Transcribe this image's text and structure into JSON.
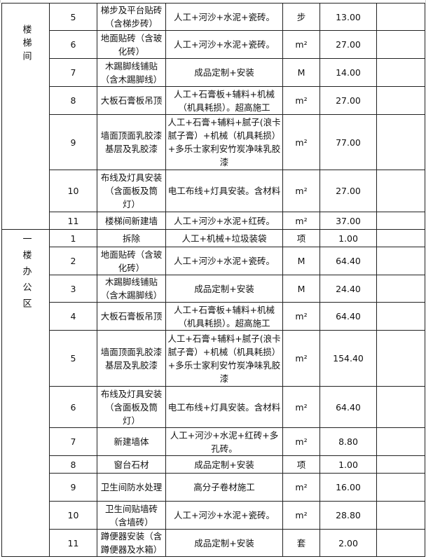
{
  "sections": [
    {
      "name": "楼梯间",
      "rows": [
        {
          "no": "5",
          "item": "梯步及平台贴砖（含梯步砖）",
          "desc": "人工+河沙+水泥+瓷砖。",
          "unit": "步",
          "qty": "13.00",
          "note": ""
        },
        {
          "no": "6",
          "item": "地面贴砖（含玻化砖）",
          "desc": "人工+河沙+水泥+瓷砖。",
          "unit": "m²",
          "qty": "27.00",
          "note": ""
        },
        {
          "no": "7",
          "item": "木踢脚线铺贴（含木踢脚线）",
          "desc": "成品定制+安装",
          "unit": "M",
          "qty": "14.00",
          "note": ""
        },
        {
          "no": "8",
          "item": "大板石膏板吊顶",
          "desc": "人工+石膏板+辅料+机械（机具耗损）。超高施工",
          "unit": "m²",
          "qty": "27.00",
          "note": ""
        },
        {
          "no": "9",
          "item": "墙面顶面乳胶漆基层及乳胶漆",
          "desc": "人工+石膏+辅料+腻子(浪卡腻子膏）+机械（机具耗损）+多乐士家利安竹炭净味乳胶漆",
          "unit": "m²",
          "qty": "77.00",
          "note": ""
        },
        {
          "no": "10",
          "item": "布线及灯具安装（含面板及筒灯）",
          "desc": "电工布线+灯具安装。含材料",
          "unit": "m²",
          "qty": "27.00",
          "note": ""
        },
        {
          "no": "11",
          "item": "楼梯间新建墙",
          "desc": "人工+河沙+水泥+红砖。",
          "unit": "m²",
          "qty": "37.00",
          "note": ""
        }
      ]
    },
    {
      "name": "一楼办公区",
      "rows": [
        {
          "no": "1",
          "item": "拆除",
          "desc": "人工+机械+垃圾装袋",
          "unit": "项",
          "qty": "1.00",
          "note": ""
        },
        {
          "no": "2",
          "item": "地面贴砖（含玻化砖）",
          "desc": "人工+河沙+水泥+瓷砖。",
          "unit": "M",
          "qty": "64.40",
          "note": ""
        },
        {
          "no": "3",
          "item": "木踢脚线铺贴（含木踢脚线）",
          "desc": "成品定制+安装",
          "unit": "M",
          "qty": "24.40",
          "note": ""
        },
        {
          "no": "4",
          "item": "大板石膏板吊顶",
          "desc": "人工+石膏板+辅料+机械（机具耗损）。超高施工",
          "unit": "m²",
          "qty": "64.40",
          "note": ""
        },
        {
          "no": "5",
          "item": "墙面顶面乳胶漆基层及乳胶漆",
          "desc": "人工+石膏+辅料+腻子(浪卡腻子膏）+机械（机具耗损）+多乐士家利安竹炭净味乳胶漆",
          "unit": "m²",
          "qty": "154.40",
          "note": ""
        },
        {
          "no": "6",
          "item": "布线及灯具安装（含面板及筒灯）",
          "desc": "电工布线+灯具安装。含材料",
          "unit": "m²",
          "qty": "64.40",
          "note": ""
        },
        {
          "no": "7",
          "item": "新建墙体",
          "desc": "人工+河沙+水泥+红砖+多孔砖。",
          "unit": "m²",
          "qty": "8.80",
          "note": ""
        },
        {
          "no": "8",
          "item": "窗台石材",
          "desc": "成品定制+安装",
          "unit": "项",
          "qty": "1.00",
          "note": ""
        },
        {
          "no": "9",
          "item": "卫生间防水处理",
          "desc": "高分子卷材施工",
          "unit": "m²",
          "qty": "16.00",
          "note": ""
        },
        {
          "no": "10",
          "item": "卫生间贴墙砖（含墙砖）",
          "desc": "人工+河沙+水泥+瓷砖。",
          "unit": "m²",
          "qty": "28.80",
          "note": ""
        },
        {
          "no": "11",
          "item": "蹲便器安装（含蹲便器及水箱）",
          "desc": "成品定制+安装",
          "unit": "套",
          "qty": "2.00",
          "note": ""
        }
      ]
    }
  ]
}
